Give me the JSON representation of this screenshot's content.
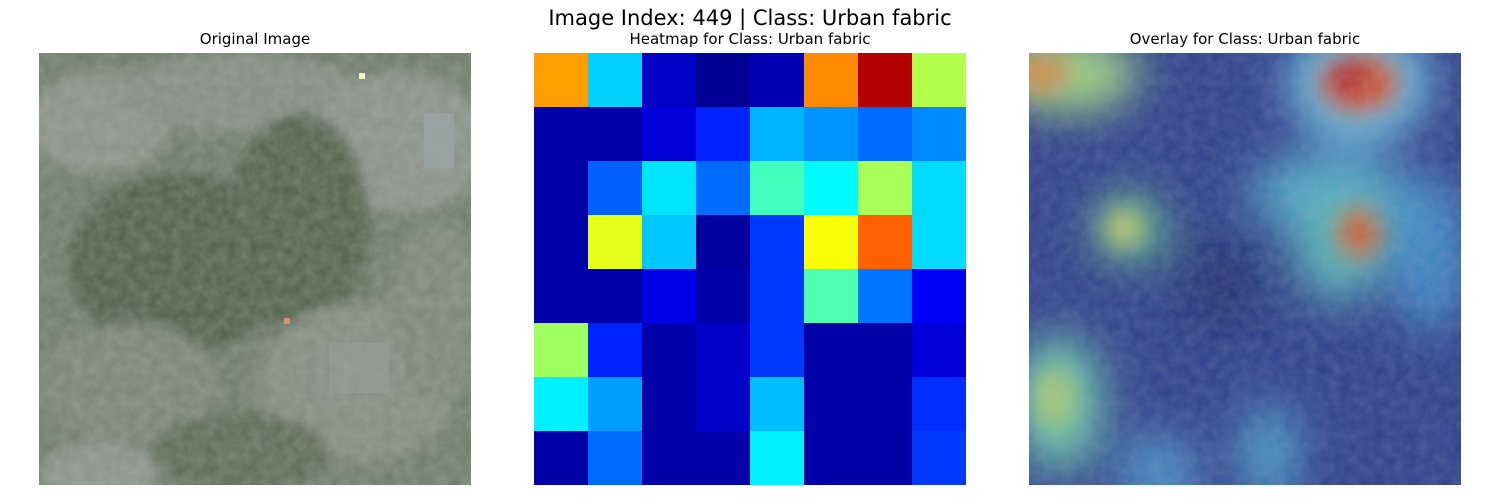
{
  "figure": {
    "suptitle": "Image Index: 449 | Class: Urban fabric"
  },
  "panels": [
    {
      "title": "Original Image"
    },
    {
      "title": "Heatmap for Class: Urban fabric"
    },
    {
      "title": "Overlay for Class: Urban fabric"
    }
  ],
  "heatmap": {
    "rows": 8,
    "cols": 8,
    "colormap": "jet",
    "values": [
      [
        0.72,
        0.33,
        0.07,
        0.02,
        0.05,
        0.74,
        0.95,
        0.55
      ],
      [
        0.04,
        0.04,
        0.09,
        0.16,
        0.3,
        0.27,
        0.23,
        0.26
      ],
      [
        0.04,
        0.22,
        0.35,
        0.23,
        0.44,
        0.37,
        0.54,
        0.34
      ],
      [
        0.04,
        0.6,
        0.32,
        0.03,
        0.18,
        0.62,
        0.78,
        0.34
      ],
      [
        0.04,
        0.04,
        0.1,
        0.04,
        0.18,
        0.45,
        0.24,
        0.12
      ],
      [
        0.53,
        0.16,
        0.04,
        0.07,
        0.18,
        0.04,
        0.04,
        0.09
      ],
      [
        0.36,
        0.28,
        0.04,
        0.07,
        0.31,
        0.04,
        0.04,
        0.17
      ],
      [
        0.04,
        0.23,
        0.04,
        0.04,
        0.36,
        0.04,
        0.04,
        0.18
      ]
    ]
  }
}
